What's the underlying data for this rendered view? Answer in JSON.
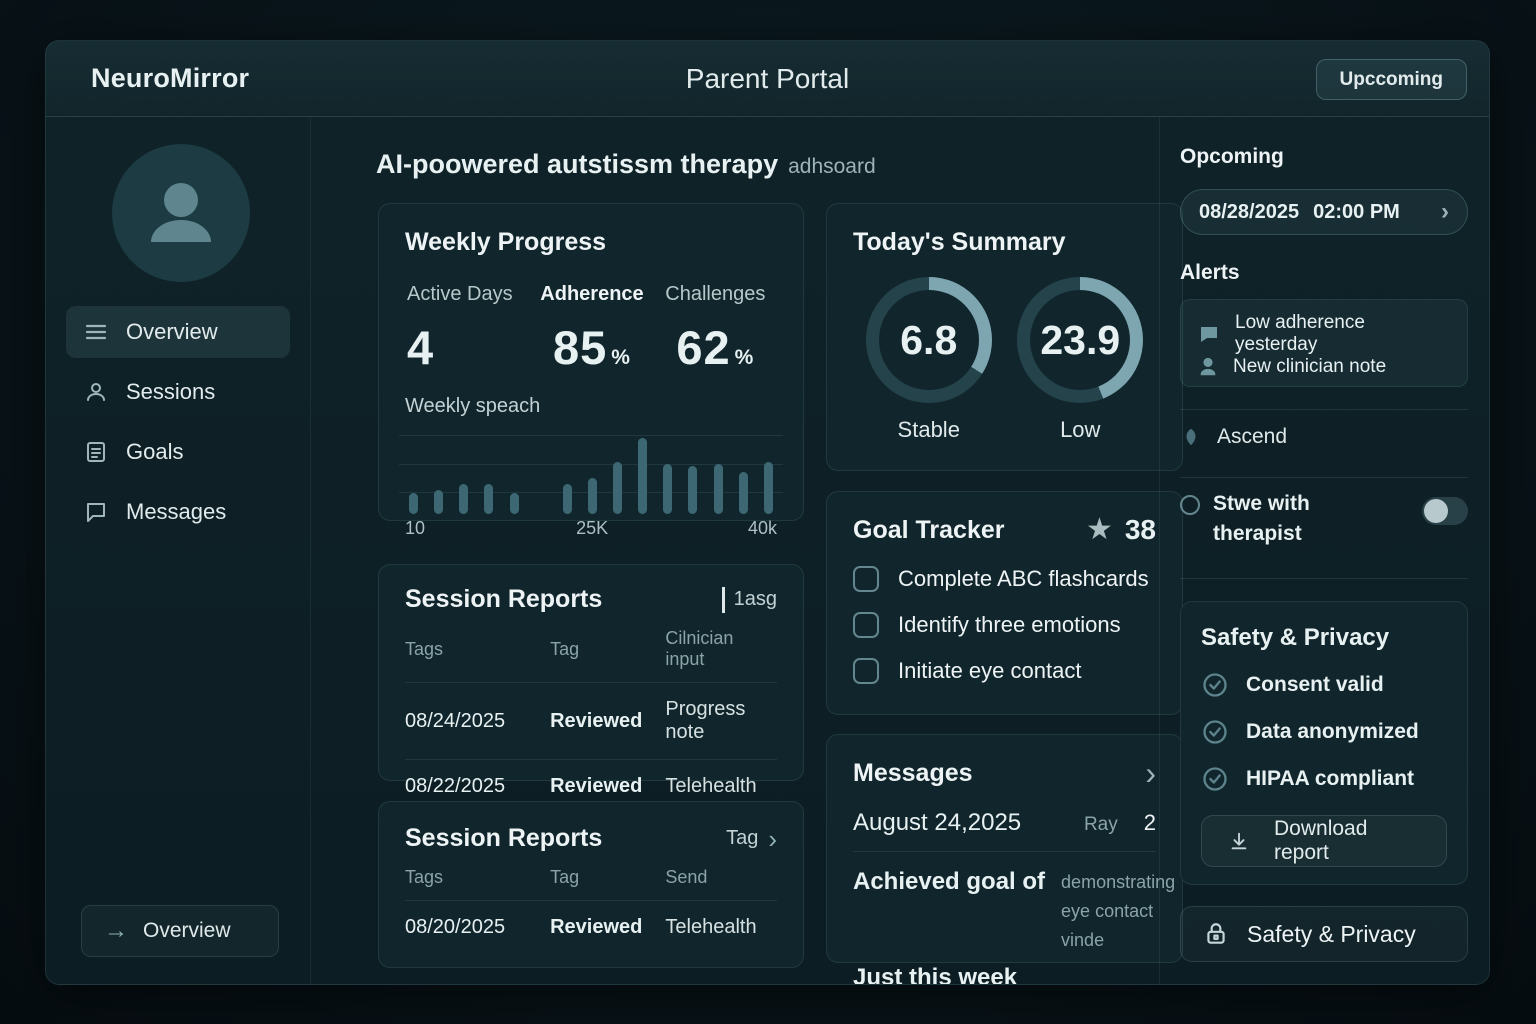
{
  "theme": {
    "accent": "#7da6b0",
    "ring_track": "#24434b",
    "bar_color": "#3d6873",
    "card_bg": "#11262c",
    "text_primary": "#e8f1f2",
    "text_muted": "#8aa4a8"
  },
  "header": {
    "brand": "NeuroMirror",
    "title": "Parent Portal",
    "button": "Upccoming"
  },
  "sidebar": {
    "items": [
      {
        "label": "Overview"
      },
      {
        "label": "Sessions"
      },
      {
        "label": "Goals"
      },
      {
        "label": "Messages"
      }
    ],
    "footer_button": "Overview"
  },
  "main": {
    "title": "AI-poowered autstissm therapy",
    "title_suffix": "adhsoard",
    "weekly_progress": {
      "title": "Weekly Progress",
      "stats": [
        {
          "label": "Active Days",
          "value": "4",
          "suffix": ""
        },
        {
          "label": "Adherence",
          "value": "85",
          "suffix": "%"
        },
        {
          "label": "Challenges",
          "value": "62",
          "suffix": "%"
        }
      ],
      "chart_label": "Weekly speach"
    },
    "session_reports_1": {
      "title": "Session Reports",
      "action": "1asg",
      "columns": [
        "Tags",
        "Tag",
        "Cilnician input"
      ],
      "rows": [
        [
          "08/24/2025",
          "Reviewed",
          "Progress note"
        ],
        [
          "08/22/2025",
          "Reviewed",
          "Telehealth"
        ]
      ]
    },
    "session_reports_2": {
      "title": "Session Reports",
      "action": "Tag",
      "columns": [
        "Tags",
        "Tag",
        "Send"
      ],
      "rows": [
        [
          "08/20/2025",
          "Reviewed",
          "Telehealth"
        ]
      ]
    },
    "todays_summary": {
      "title": "Today's Summary"
    },
    "goal_tracker": {
      "title": "Goal Tracker",
      "score": "38",
      "items": [
        "Complete ABC flashcards",
        "Identify three emotions",
        "Initiate eye contact"
      ]
    },
    "messages": {
      "title": "Messages",
      "date": "August 24,2025",
      "sender": "Ray",
      "badge": "2",
      "body": "Achieved goal of",
      "body_detail": "demonstrating eye contact vinde",
      "footer": "Just this week"
    }
  },
  "right_panel": {
    "upcoming_title": "Opcoming",
    "appointment": {
      "date": "08/28/2025",
      "time": "02:00 PM"
    },
    "alerts_title": "Alerts",
    "alerts": [
      {
        "text": "Low adherence yesterday"
      },
      {
        "text": "New clinician note"
      }
    ],
    "ascend_label": "Ascend",
    "share_toggle": {
      "label": "Stwe with therapist",
      "state": "off"
    },
    "safety": {
      "title": "Safety & Privacy",
      "items": [
        "Consent valid",
        "Data anonymized",
        "HIPAA compliant"
      ],
      "download_button": "Download report"
    },
    "footer_button": "Safety & Privacy"
  },
  "chart_data": [
    {
      "type": "bar",
      "title": "Weekly speach",
      "values": [
        25,
        28,
        35,
        35,
        25,
        35,
        42,
        60,
        88,
        58,
        56,
        58,
        49,
        60
      ],
      "x_tick_labels": [
        "10",
        "25K",
        "40k"
      ],
      "ylim": [
        0,
        100
      ],
      "grid": true,
      "group_gap_after_index": 4,
      "legend": false
    },
    {
      "type": "donut",
      "title": "Today's Summary",
      "series": [
        {
          "label": "Stable",
          "value": "6.8",
          "arc_percent": 34
        },
        {
          "label": "Low",
          "value": "23.9",
          "arc_percent": 44
        }
      ]
    }
  ]
}
